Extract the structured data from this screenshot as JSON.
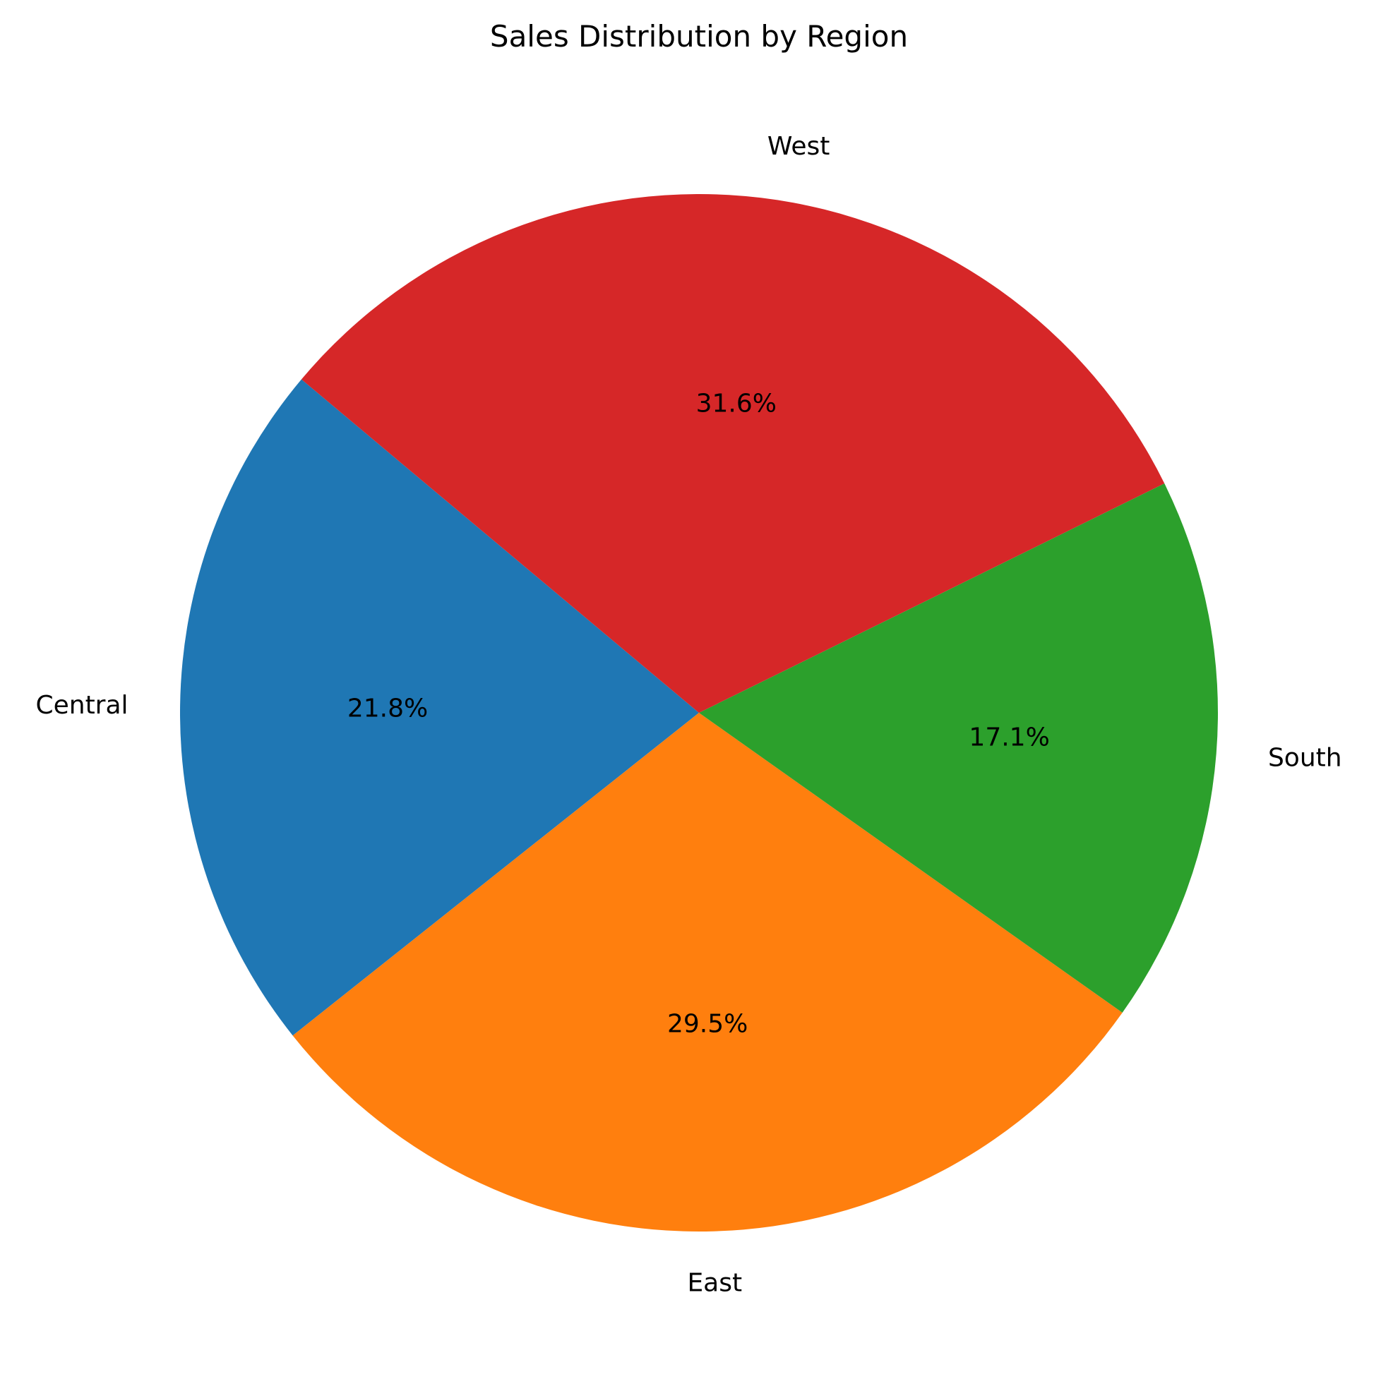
{
  "chart_data": {
    "type": "pie",
    "title": "Sales Distribution by Region",
    "categories": [
      "Central",
      "East",
      "South",
      "West"
    ],
    "values": [
      21.8,
      29.5,
      17.1,
      31.6
    ],
    "percent_labels": [
      "21.8%",
      "29.5%",
      "17.1%",
      "31.6%"
    ],
    "colors": [
      "#1f77b4",
      "#ff7f0e",
      "#2ca02c",
      "#d62728"
    ],
    "start_angle_deg": 140,
    "direction": "counterclockwise",
    "legend": "none"
  }
}
